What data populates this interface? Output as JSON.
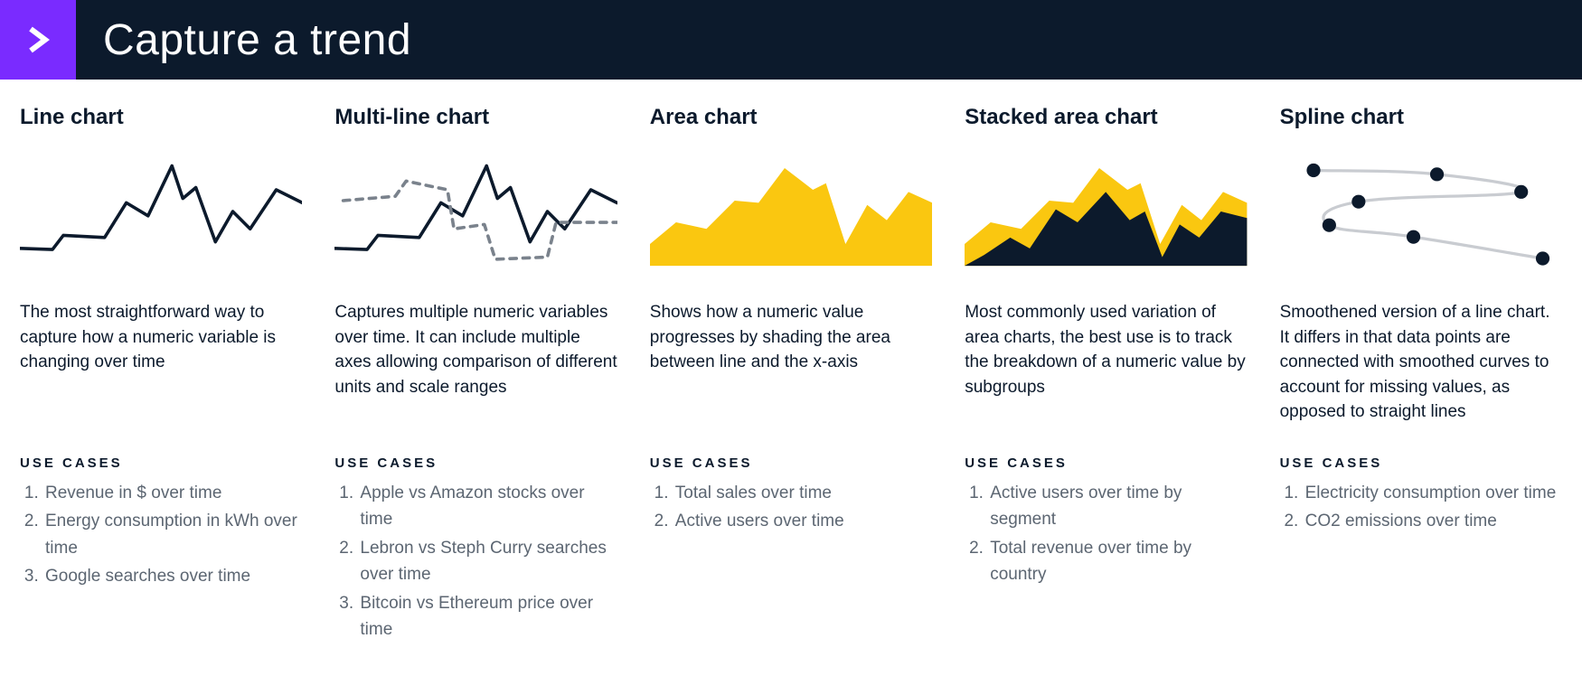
{
  "header": {
    "title": "Capture a trend",
    "badge_color": "#7a2bff",
    "bar_color": "#0c1a2c",
    "arrow_color": "#ffffff"
  },
  "use_cases_label": "USE CASES",
  "colors": {
    "ink": "#0c1a2c",
    "grey_text": "#5c6672",
    "yellow": "#fac710",
    "dash": "#7a828c",
    "marker": "#0c1a2c",
    "spline_line": "#c9ccd1"
  },
  "cards": [
    {
      "key": "line",
      "title": "Line chart",
      "description": "The most straightforward way to capture how a numeric variable is changing over time",
      "use_cases": [
        "Revenue in $ over time",
        "Energy consumption in kWh over time",
        "Google searches over time"
      ],
      "chart": {
        "type": "line",
        "stroke_color": "#0c1a2c",
        "stroke_width": 3,
        "xlim": [
          0,
          260
        ],
        "ylim": [
          0,
          100
        ],
        "points": [
          [
            0,
            84
          ],
          [
            30,
            85
          ],
          [
            40,
            72
          ],
          [
            78,
            74
          ],
          [
            98,
            42
          ],
          [
            118,
            54
          ],
          [
            140,
            8
          ],
          [
            150,
            38
          ],
          [
            162,
            28
          ],
          [
            180,
            78
          ],
          [
            196,
            50
          ],
          [
            212,
            66
          ],
          [
            236,
            30
          ],
          [
            260,
            42
          ]
        ]
      }
    },
    {
      "key": "multiline",
      "title": "Multi-line chart",
      "description": "Captures multiple numeric variables over time. It can include multiple axes allowing comparison of different units and scale ranges",
      "use_cases": [
        "Apple vs Amazon stocks over time",
        "Lebron vs Steph Curry searches over time",
        "Bitcoin vs Ethereum price over time"
      ],
      "chart": {
        "type": "multi-line",
        "xlim": [
          0,
          260
        ],
        "ylim": [
          0,
          100
        ],
        "series": [
          {
            "name": "solid",
            "stroke_color": "#0c1a2c",
            "stroke_width": 3,
            "dash": null,
            "points": [
              [
                0,
                84
              ],
              [
                30,
                85
              ],
              [
                40,
                72
              ],
              [
                78,
                74
              ],
              [
                98,
                42
              ],
              [
                118,
                54
              ],
              [
                140,
                8
              ],
              [
                150,
                38
              ],
              [
                162,
                28
              ],
              [
                180,
                78
              ],
              [
                196,
                50
              ],
              [
                212,
                66
              ],
              [
                236,
                30
              ],
              [
                260,
                42
              ]
            ]
          },
          {
            "name": "dashed",
            "stroke_color": "#7a828c",
            "stroke_width": 3,
            "dash": "6 6",
            "points": [
              [
                8,
                40
              ],
              [
                56,
                36
              ],
              [
                66,
                22
              ],
              [
                104,
                30
              ],
              [
                110,
                66
              ],
              [
                138,
                62
              ],
              [
                148,
                94
              ],
              [
                196,
                92
              ],
              [
                204,
                60
              ],
              [
                260,
                60
              ]
            ]
          }
        ]
      }
    },
    {
      "key": "area",
      "title": "Area chart",
      "description": "Shows how a numeric value progresses by shading the area between line and the x-axis",
      "use_cases": [
        "Total sales over time",
        "Active users over time"
      ],
      "chart": {
        "type": "area",
        "fill_color": "#fac710",
        "xlim": [
          0,
          260
        ],
        "ylim": [
          0,
          100
        ],
        "baseline_y": 100,
        "points": [
          [
            0,
            80
          ],
          [
            24,
            60
          ],
          [
            52,
            66
          ],
          [
            78,
            40
          ],
          [
            100,
            42
          ],
          [
            124,
            10
          ],
          [
            150,
            30
          ],
          [
            162,
            24
          ],
          [
            180,
            80
          ],
          [
            200,
            44
          ],
          [
            218,
            58
          ],
          [
            238,
            32
          ],
          [
            260,
            42
          ]
        ]
      }
    },
    {
      "key": "stacked",
      "title": "Stacked area chart",
      "description": "Most commonly used variation of area charts, the best use is to track the breakdown of a numeric value by subgroups",
      "use_cases": [
        "Active users over time by segment",
        "Total revenue over time by country"
      ],
      "chart": {
        "type": "stacked-area",
        "xlim": [
          0,
          260
        ],
        "ylim": [
          0,
          100
        ],
        "layers": [
          {
            "name": "back",
            "fill_color": "#fac710",
            "baseline_y": 100,
            "points": [
              [
                0,
                80
              ],
              [
                24,
                60
              ],
              [
                52,
                66
              ],
              [
                78,
                40
              ],
              [
                100,
                42
              ],
              [
                124,
                10
              ],
              [
                150,
                30
              ],
              [
                162,
                24
              ],
              [
                180,
                80
              ],
              [
                200,
                44
              ],
              [
                218,
                58
              ],
              [
                238,
                32
              ],
              [
                260,
                42
              ]
            ]
          },
          {
            "name": "front",
            "fill_color": "#0c1a2c",
            "baseline_y": 100,
            "points": [
              [
                0,
                100
              ],
              [
                18,
                90
              ],
              [
                42,
                74
              ],
              [
                60,
                84
              ],
              [
                84,
                48
              ],
              [
                104,
                60
              ],
              [
                130,
                32
              ],
              [
                152,
                58
              ],
              [
                166,
                50
              ],
              [
                182,
                92
              ],
              [
                198,
                62
              ],
              [
                216,
                74
              ],
              [
                236,
                50
              ],
              [
                260,
                56
              ]
            ]
          }
        ]
      }
    },
    {
      "key": "spline",
      "title": "Spline chart",
      "description": "Smoothened version of a line chart. It differs in that data points are connected with smoothed curves to account for missing values, as opposed to straight lines",
      "use_cases": [
        "Electricity consumption over time",
        "CO2 emissions over time"
      ],
      "chart": {
        "type": "spline",
        "stroke_color": "#c9ccd1",
        "stroke_width": 3,
        "marker_color": "#0c1a2c",
        "marker_radius": 7,
        "xlim": [
          0,
          260
        ],
        "ylim": [
          0,
          120
        ],
        "points": [
          [
            20,
            18
          ],
          [
            146,
            22
          ],
          [
            232,
            40
          ],
          [
            66,
            50
          ],
          [
            36,
            74
          ],
          [
            122,
            86
          ],
          [
            254,
            108
          ]
        ]
      }
    }
  ]
}
